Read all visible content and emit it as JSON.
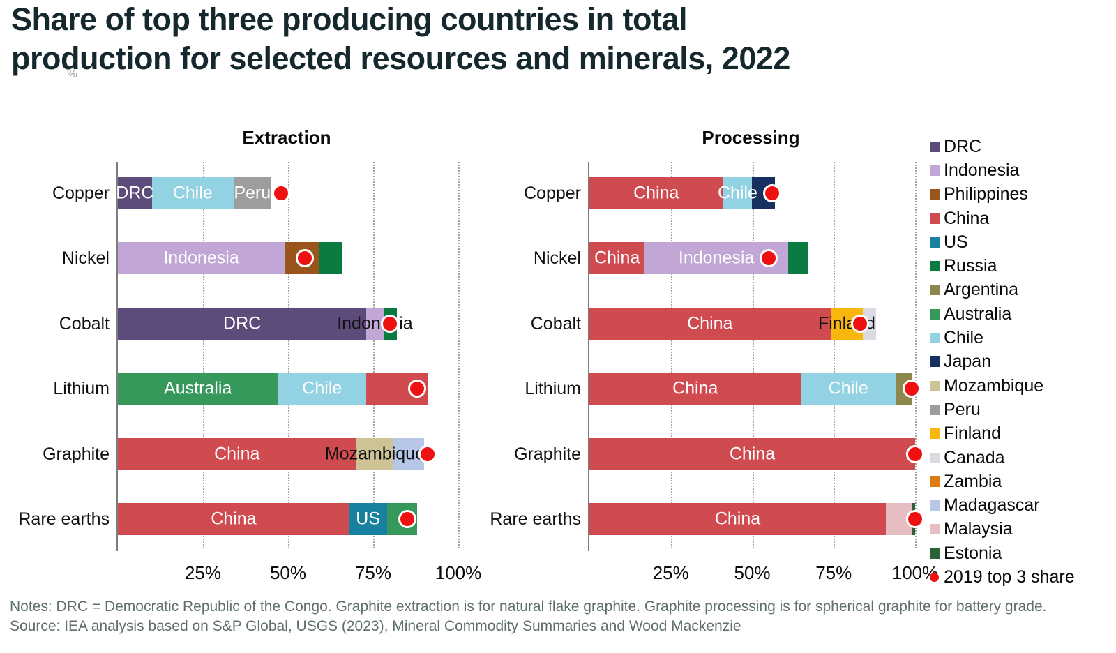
{
  "title": {
    "line1": "Share of top three producing countries in total",
    "line2": "production for selected resources and minerals, 2022"
  },
  "unit_label": "%",
  "colors": {
    "title_text": "#15282e",
    "notes_text": "#5f6e6e",
    "axis_line": "#7d7d7d",
    "gridline": "#a2a2a2",
    "dot_2019": "#ee1111",
    "countries": {
      "DRC": "#5d4b7b",
      "Indonesia": "#c2a6d5",
      "Philippines": "#99551c",
      "China": "#d04b50",
      "US": "#17819f",
      "Russia": "#0a7a41",
      "Argentina": "#8d874e",
      "Australia": "#36995b",
      "Chile": "#93d2e3",
      "Japan": "#16305f",
      "Mozambique": "#cec394",
      "Peru": "#9d9d9d",
      "Finland": "#f8b70d",
      "Canada": "#dcd9e0",
      "Zambia": "#dd7b15",
      "Madagascar": "#b8c6e8",
      "Malaysia": "#e6bec2",
      "Estonia": "#2b6137"
    }
  },
  "chart_data": [
    {
      "type": "bar",
      "id": "extraction",
      "title": "Extraction",
      "orientation": "horizontal-stacked",
      "unit": "%",
      "xlim": [
        0,
        100
      ],
      "x_ticks": [
        {
          "value": 25,
          "label": "25%"
        },
        {
          "value": 50,
          "label": "50%"
        },
        {
          "value": 75,
          "label": "75%"
        },
        {
          "value": 100,
          "label": "100%"
        }
      ],
      "dot_series_name": "2019 top 3 share",
      "categories": [
        "Copper",
        "Nickel",
        "Cobalt",
        "Lithium",
        "Graphite",
        "Rare earths"
      ],
      "rows": [
        {
          "mineral": "Copper",
          "dot_2019": 48,
          "segments": [
            {
              "country": "DRC",
              "value": 10,
              "label": "DRC",
              "label_color": "white"
            },
            {
              "country": "Chile",
              "value": 24,
              "label": "Chile",
              "label_color": "white"
            },
            {
              "country": "Peru",
              "value": 11,
              "label": "Peru",
              "label_color": "white"
            }
          ]
        },
        {
          "mineral": "Nickel",
          "dot_2019": 55,
          "segments": [
            {
              "country": "Indonesia",
              "value": 49,
              "label": "Indonesia",
              "label_color": "white"
            },
            {
              "country": "Philippines",
              "value": 10
            },
            {
              "country": "Russia",
              "value": 7
            }
          ]
        },
        {
          "mineral": "Cobalt",
          "dot_2019": 80,
          "segments": [
            {
              "country": "DRC",
              "value": 73,
              "label": "DRC",
              "label_color": "white"
            },
            {
              "country": "Indonesia",
              "value": 5,
              "label": "Indonesia",
              "label_color": "black"
            },
            {
              "country": "Russia",
              "value": 4
            }
          ]
        },
        {
          "mineral": "Lithium",
          "dot_2019": 88,
          "segments": [
            {
              "country": "Australia",
              "value": 47,
              "label": "Australia",
              "label_color": "white"
            },
            {
              "country": "Chile",
              "value": 26,
              "label": "Chile",
              "label_color": "white"
            },
            {
              "country": "China",
              "value": 18
            }
          ]
        },
        {
          "mineral": "Graphite",
          "dot_2019": 91,
          "segments": [
            {
              "country": "China",
              "value": 70,
              "label": "China",
              "label_color": "white"
            },
            {
              "country": "Mozambique",
              "value": 11,
              "label": "Mozambique",
              "label_color": "black"
            },
            {
              "country": "Madagascar",
              "value": 9
            }
          ]
        },
        {
          "mineral": "Rare earths",
          "dot_2019": 85,
          "segments": [
            {
              "country": "China",
              "value": 68,
              "label": "China",
              "label_color": "white"
            },
            {
              "country": "US",
              "value": 11,
              "label": "US",
              "label_color": "white"
            },
            {
              "country": "Australia",
              "value": 9
            }
          ]
        }
      ]
    },
    {
      "type": "bar",
      "id": "processing",
      "title": "Processing",
      "orientation": "horizontal-stacked",
      "unit": "%",
      "xlim": [
        0,
        100
      ],
      "x_ticks": [
        {
          "value": 25,
          "label": "25%"
        },
        {
          "value": 50,
          "label": "50%"
        },
        {
          "value": 75,
          "label": "75%"
        },
        {
          "value": 100,
          "label": "100%"
        }
      ],
      "dot_series_name": "2019 top 3 share",
      "categories": [
        "Copper",
        "Nickel",
        "Cobalt",
        "Lithium",
        "Graphite",
        "Rare earths"
      ],
      "rows": [
        {
          "mineral": "Copper",
          "dot_2019": 56,
          "segments": [
            {
              "country": "China",
              "value": 41,
              "label": "China",
              "label_color": "white"
            },
            {
              "country": "Chile",
              "value": 9,
              "label": "Chile",
              "label_color": "white"
            },
            {
              "country": "Japan",
              "value": 7
            }
          ]
        },
        {
          "mineral": "Nickel",
          "dot_2019": 55,
          "segments": [
            {
              "country": "China",
              "value": 17,
              "label": "China",
              "label_color": "white"
            },
            {
              "country": "Indonesia",
              "value": 44,
              "label": "Indonesia",
              "label_color": "white"
            },
            {
              "country": "Russia",
              "value": 6
            }
          ]
        },
        {
          "mineral": "Cobalt",
          "dot_2019": 83,
          "segments": [
            {
              "country": "China",
              "value": 74,
              "label": "China",
              "label_color": "white"
            },
            {
              "country": "Finland",
              "value": 10,
              "label": "Finland",
              "label_color": "black"
            },
            {
              "country": "Canada",
              "value": 4
            }
          ]
        },
        {
          "mineral": "Lithium",
          "dot_2019": 99,
          "segments": [
            {
              "country": "China",
              "value": 65,
              "label": "China",
              "label_color": "white"
            },
            {
              "country": "Chile",
              "value": 29,
              "label": "Chile",
              "label_color": "white"
            },
            {
              "country": "Argentina",
              "value": 5
            }
          ]
        },
        {
          "mineral": "Graphite",
          "dot_2019": 100,
          "segments": [
            {
              "country": "China",
              "value": 100,
              "label": "China",
              "label_color": "white"
            }
          ]
        },
        {
          "mineral": "Rare earths",
          "dot_2019": 100,
          "segments": [
            {
              "country": "China",
              "value": 91,
              "label": "China",
              "label_color": "white"
            },
            {
              "country": "Malaysia",
              "value": 8
            },
            {
              "country": "Estonia",
              "value": 1
            }
          ]
        }
      ]
    }
  ],
  "legend": {
    "items": [
      {
        "label": "DRC",
        "marker": "square"
      },
      {
        "label": "Indonesia",
        "marker": "square"
      },
      {
        "label": "Philippines",
        "marker": "square"
      },
      {
        "label": "China",
        "marker": "square"
      },
      {
        "label": "US",
        "marker": "square"
      },
      {
        "label": "Russia",
        "marker": "square"
      },
      {
        "label": "Argentina",
        "marker": "square"
      },
      {
        "label": "Australia",
        "marker": "square"
      },
      {
        "label": "Chile",
        "marker": "square"
      },
      {
        "label": "Japan",
        "marker": "square"
      },
      {
        "label": "Mozambique",
        "marker": "square"
      },
      {
        "label": "Peru",
        "marker": "square"
      },
      {
        "label": "Finland",
        "marker": "square"
      },
      {
        "label": "Canada",
        "marker": "square"
      },
      {
        "label": "Zambia",
        "marker": "square"
      },
      {
        "label": "Madagascar",
        "marker": "square"
      },
      {
        "label": "Malaysia",
        "marker": "square"
      },
      {
        "label": "Estonia",
        "marker": "square"
      },
      {
        "label": "2019 top 3 share",
        "marker": "dot"
      }
    ]
  },
  "notes": {
    "line1": "Notes: DRC = Democratic Republic of the Congo. Graphite extraction is for natural flake graphite. Graphite processing is for spherical graphite for battery grade.",
    "line2": "Source: IEA analysis based on S&P Global, USGS (2023), Mineral Commodity Summaries and Wood Mackenzie"
  }
}
